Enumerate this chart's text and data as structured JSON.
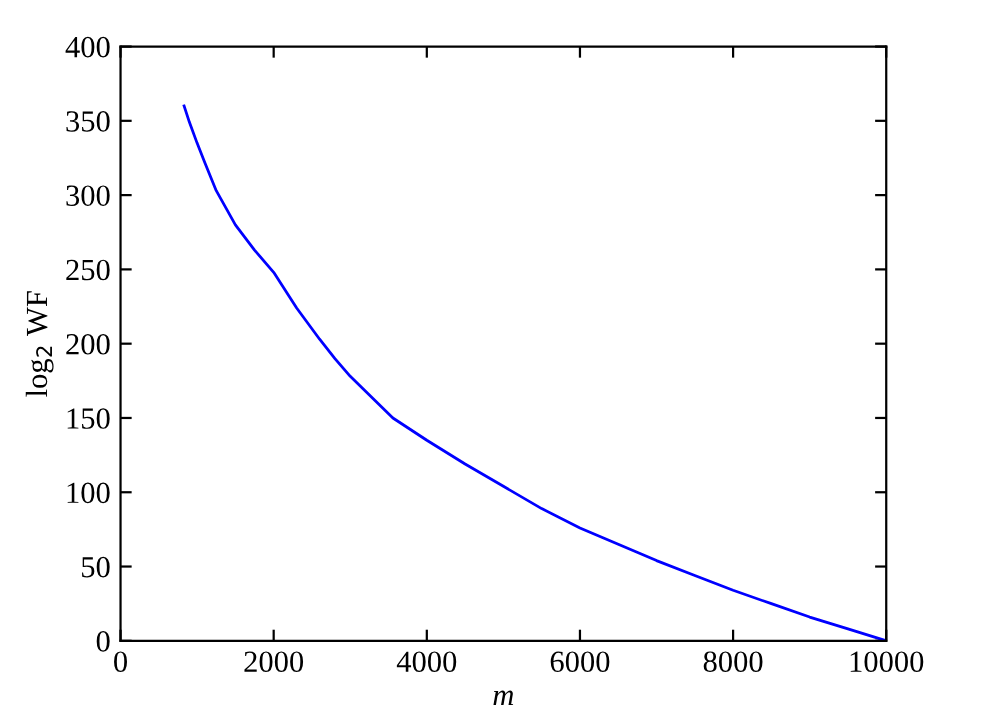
{
  "chart_data": {
    "type": "line",
    "xlabel": "m",
    "ylabel": "log$_{2}$ WF",
    "series": [
      {
        "color": "#0000ff",
        "x": [
          830,
          900,
          1000,
          1100,
          1250,
          1500,
          1750,
          2000,
          2300,
          2600,
          2800,
          3000,
          3300,
          3557,
          4000,
          4500,
          5000,
          5500,
          6000,
          6500,
          7000,
          7500,
          8000,
          8500,
          9000,
          9500,
          10000
        ],
        "values": [
          360,
          349,
          335,
          322,
          303,
          280,
          263,
          248,
          224,
          203,
          190,
          178,
          163,
          150,
          135,
          119,
          104,
          89,
          76,
          65,
          54,
          44,
          34,
          25,
          16,
          8,
          0
        ]
      }
    ],
    "xlim": [
      0,
      10000
    ],
    "xticks": [
      0,
      2000,
      4000,
      6000,
      8000,
      10000
    ],
    "ylim": [
      0,
      400
    ],
    "yticks": [
      0,
      50,
      100,
      150,
      200,
      250,
      300,
      350,
      400
    ],
    "grid": false,
    "marker": "none",
    "line_style": "solid"
  }
}
